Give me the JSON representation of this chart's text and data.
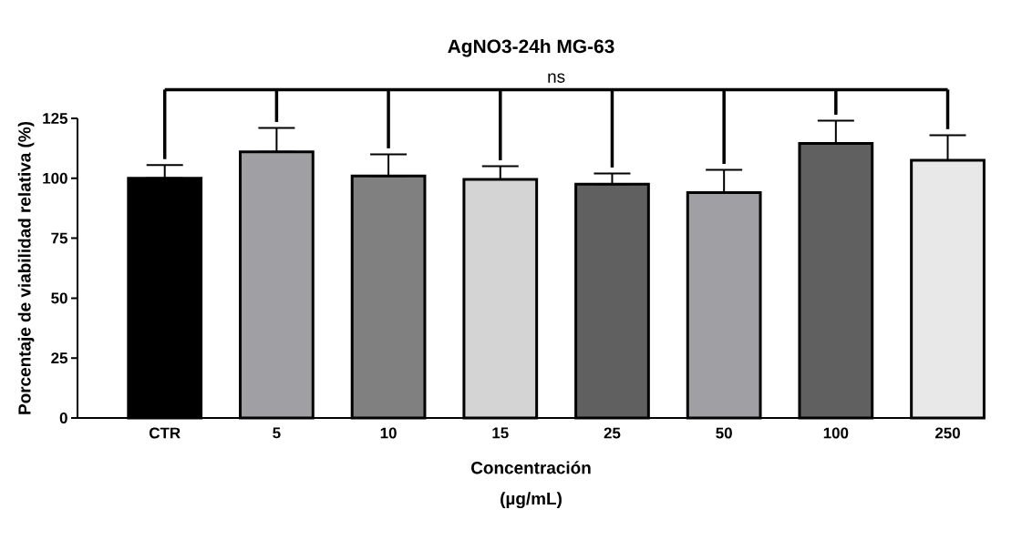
{
  "chart_data": {
    "type": "bar",
    "title": "AgNO3-24h MG-63",
    "xlabel": "Concentración (µg/mL)",
    "ylabel": "Porcentaje de viabilidad relativa (%)",
    "categories": [
      "CTR",
      "5",
      "10",
      "15",
      "25",
      "50",
      "100",
      "250"
    ],
    "values": [
      100,
      111,
      101,
      99.5,
      97.5,
      94,
      114.5,
      107.5
    ],
    "errors": [
      [
        100,
        105.5
      ],
      [
        111,
        121
      ],
      [
        101,
        110
      ],
      [
        99.5,
        105
      ],
      [
        97.5,
        102
      ],
      [
        94,
        103.5
      ],
      [
        114.5,
        124
      ],
      [
        107.5,
        118
      ]
    ],
    "colors": [
      "#000000",
      "#a0a0a4",
      "#808080",
      "#d4d4d4",
      "#606060",
      "#a0a0a4",
      "#606060",
      "#e8e8e8"
    ],
    "ylim": [
      0,
      125
    ],
    "yticks": [
      0,
      25,
      50,
      75,
      100,
      125
    ],
    "annotations": [
      "ns"
    ],
    "grid": false
  }
}
